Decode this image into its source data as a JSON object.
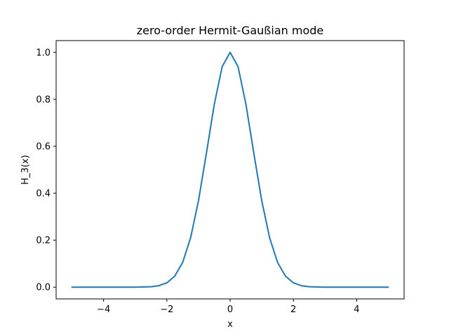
{
  "chart_data": {
    "type": "line",
    "title": "zero-order Hermit-Gaußian mode",
    "xlabel": "x",
    "ylabel": "H_3(x)",
    "xlim": [
      -5.5,
      5.5
    ],
    "ylim": [
      -0.05,
      1.05
    ],
    "xticks": [
      -4,
      -2,
      0,
      2,
      4
    ],
    "xtick_labels": [
      "−4",
      "−2",
      "0",
      "2",
      "4"
    ],
    "yticks": [
      0.0,
      0.2,
      0.4,
      0.6,
      0.8,
      1.0
    ],
    "ytick_labels": [
      "0.0",
      "0.2",
      "0.4",
      "0.6",
      "0.8",
      "1.0"
    ],
    "grid": false,
    "series": [
      {
        "color": "#1f77b4",
        "x": [
          -5.0,
          -4.5,
          -4.0,
          -3.5,
          -3.0,
          -2.5,
          -2.25,
          -2.0,
          -1.75,
          -1.5,
          -1.25,
          -1.0,
          -0.75,
          -0.5,
          -0.25,
          0.0,
          0.25,
          0.5,
          0.75,
          1.0,
          1.25,
          1.5,
          1.75,
          2.0,
          2.25,
          2.5,
          3.0,
          3.5,
          4.0,
          4.5,
          5.0
        ],
        "y": [
          0.0,
          0.0,
          0.0,
          0.0,
          0.0001,
          0.0019,
          0.0063,
          0.0183,
          0.0468,
          0.1054,
          0.2096,
          0.3679,
          0.5698,
          0.7788,
          0.9394,
          1.0,
          0.9394,
          0.7788,
          0.5698,
          0.3679,
          0.2096,
          0.1054,
          0.0468,
          0.0183,
          0.0063,
          0.0019,
          0.0001,
          0.0,
          0.0,
          0.0,
          0.0
        ]
      }
    ]
  }
}
